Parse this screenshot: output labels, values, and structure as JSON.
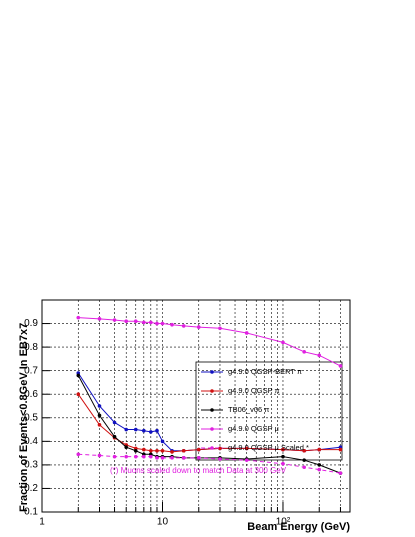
{
  "chart_data": {
    "type": "line",
    "xlabel": "Beam Energy (GeV)",
    "ylabel": "Fraction of Events<0.8GeV In EB7x7",
    "annotation": "(*) Muons scaled down to match Data at 300 GeV",
    "log_x": true,
    "grid": true,
    "xlim": [
      1,
      360
    ],
    "ylim": [
      0.1,
      1.0
    ],
    "xticks": [
      1,
      10,
      {
        "value": 100,
        "label": "10²"
      }
    ],
    "xminor_ticks": [
      2,
      3,
      4,
      5,
      6,
      7,
      8,
      9,
      20,
      30,
      40,
      50,
      60,
      70,
      80,
      90,
      200,
      300
    ],
    "yticks": [
      0.1,
      0.2,
      0.3,
      0.4,
      0.5,
      0.6,
      0.7,
      0.8,
      0.9
    ],
    "x": [
      2,
      3,
      4,
      5,
      6,
      7,
      8,
      9,
      10,
      12,
      15,
      20,
      30,
      50,
      100,
      150,
      200,
      300
    ],
    "series": [
      {
        "name": "g4.9.0 QGSP-BERT π",
        "color": "#1010c0",
        "dashed": false,
        "values": [
          0.69,
          0.55,
          0.48,
          0.45,
          0.45,
          0.445,
          0.44,
          0.445,
          0.4,
          0.36,
          0.36,
          0.365,
          0.37,
          0.37,
          0.365,
          0.36,
          0.365,
          0.375
        ]
      },
      {
        "name": "g4.9.0 QGSP π",
        "color": "#d01010",
        "dashed": false,
        "values": [
          0.6,
          0.47,
          0.415,
          0.385,
          0.37,
          0.365,
          0.36,
          0.36,
          0.36,
          0.355,
          0.36,
          0.365,
          0.37,
          0.37,
          0.365,
          0.36,
          0.365,
          0.365
        ]
      },
      {
        "name": "TB06_v06 π",
        "color": "#000000",
        "dashed": false,
        "values": [
          0.68,
          0.51,
          0.42,
          0.375,
          0.36,
          0.345,
          0.345,
          0.335,
          0.335,
          0.335,
          0.33,
          0.33,
          0.33,
          0.325,
          0.335,
          0.32,
          0.3,
          0.265
        ]
      },
      {
        "name": "g4.9.0 QGSP μ",
        "color": "#e020e0",
        "dashed": false,
        "values": [
          0.925,
          0.92,
          0.915,
          0.91,
          0.91,
          0.905,
          0.905,
          0.9,
          0.9,
          0.895,
          0.89,
          0.885,
          0.88,
          0.86,
          0.82,
          0.78,
          0.765,
          0.72
        ]
      },
      {
        "name": "g4.9.0 QGSP μ Scaled *",
        "color": "#e020e0",
        "dashed": true,
        "values": [
          0.345,
          0.34,
          0.335,
          0.335,
          0.335,
          0.335,
          0.335,
          0.33,
          0.33,
          0.33,
          0.33,
          0.33,
          0.325,
          0.32,
          0.305,
          0.29,
          0.28,
          0.265
        ]
      }
    ]
  }
}
